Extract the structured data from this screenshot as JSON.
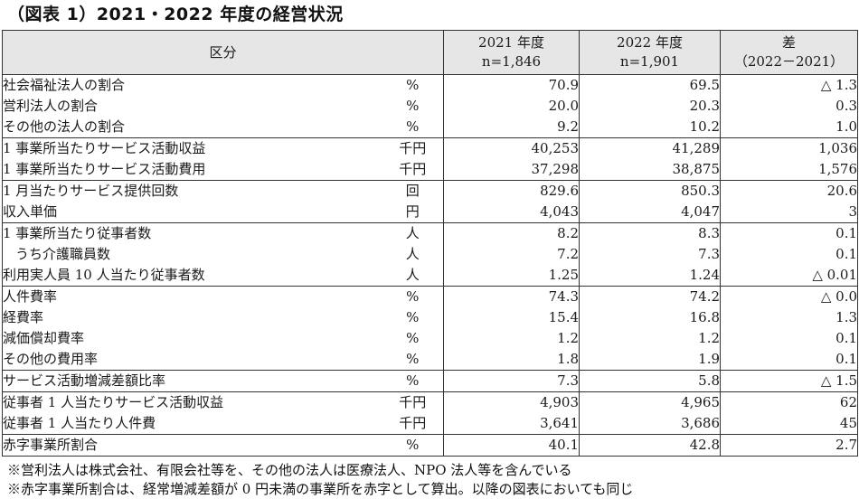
{
  "title": "（図表 1）2021・2022 年度の経営状況",
  "table": {
    "header": {
      "category": "区分",
      "col2021_year": "2021 年度",
      "col2021_n": "n=1,846",
      "col2022_year": "2022 年度",
      "col2022_n": "n=1,901",
      "diff_label": "差",
      "diff_range": "（2022－2021）"
    },
    "rows": [
      {
        "label": "社会福祉法人の割合",
        "unit": "%",
        "v2021": "70.9",
        "v2022": "69.5",
        "diff": "△ 1.3"
      },
      {
        "label": "営利法人の割合",
        "unit": "%",
        "v2021": "20.0",
        "v2022": "20.3",
        "diff": "0.3"
      },
      {
        "label": "その他の法人の割合",
        "unit": "%",
        "v2021": "9.2",
        "v2022": "10.2",
        "diff": "1.0"
      },
      {
        "label": "1 事業所当たりサービス活動収益",
        "unit": "千円",
        "v2021": "40,253",
        "v2022": "41,289",
        "diff": "1,036"
      },
      {
        "label": "1 事業所当たりサービス活動費用",
        "unit": "千円",
        "v2021": "37,298",
        "v2022": "38,875",
        "diff": "1,576"
      },
      {
        "label": "1 月当たりサービス提供回数",
        "unit": "回",
        "v2021": "829.6",
        "v2022": "850.3",
        "diff": "20.6"
      },
      {
        "label": "収入単価",
        "unit": "円",
        "v2021": "4,043",
        "v2022": "4,047",
        "diff": "3"
      },
      {
        "label": "1 事業所当たり従事者数",
        "unit": "人",
        "v2021": "8.2",
        "v2022": "8.3",
        "diff": "0.1"
      },
      {
        "label": "うち介護職員数",
        "unit": "人",
        "v2021": "7.2",
        "v2022": "7.3",
        "diff": "0.1"
      },
      {
        "label": "利用実人員 10 人当たり従事者数",
        "unit": "人",
        "v2021": "1.25",
        "v2022": "1.24",
        "diff": "△ 0.01"
      },
      {
        "label": "人件費率",
        "unit": "%",
        "v2021": "74.3",
        "v2022": "74.2",
        "diff": "△ 0.0"
      },
      {
        "label": "経費率",
        "unit": "%",
        "v2021": "15.4",
        "v2022": "16.8",
        "diff": "1.3"
      },
      {
        "label": "減価償却費率",
        "unit": "%",
        "v2021": "1.2",
        "v2022": "1.2",
        "diff": "0.1"
      },
      {
        "label": "その他の費用率",
        "unit": "%",
        "v2021": "1.8",
        "v2022": "1.9",
        "diff": "0.1"
      },
      {
        "label": "サービス活動増減差額比率",
        "unit": "%",
        "v2021": "7.3",
        "v2022": "5.8",
        "diff": "△ 1.5"
      },
      {
        "label": "従事者 1 人当たりサービス活動収益",
        "unit": "千円",
        "v2021": "4,903",
        "v2022": "4,965",
        "diff": "62"
      },
      {
        "label": "従事者 1 人当たり人件費",
        "unit": "千円",
        "v2021": "3,641",
        "v2022": "3,686",
        "diff": "45"
      },
      {
        "label": "赤字事業所割合",
        "unit": "%",
        "v2021": "40.1",
        "v2022": "42.8",
        "diff": "2.7"
      }
    ]
  },
  "notes": [
    "※営利法人は株式会社、有限会社等を、その他の法人は医療法人、NPO 法人等を含んでいる",
    "※赤字事業所割合は、経常増減差額が 0 円未満の事業所を赤字として算出。以降の図表においても同じ"
  ]
}
